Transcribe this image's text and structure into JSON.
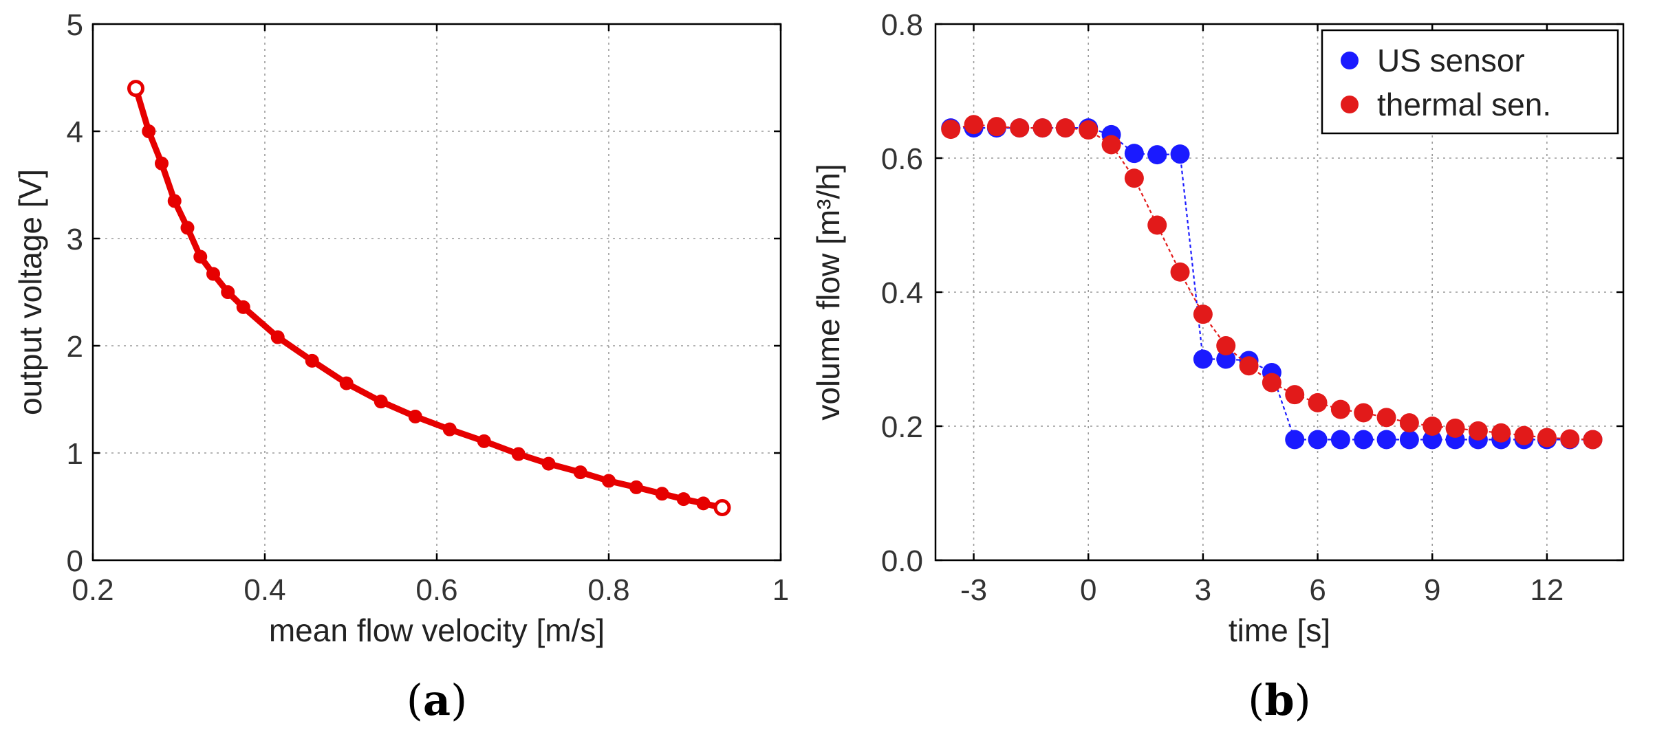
{
  "colors": {
    "red": "#e60000",
    "red_marker": "#e21a1a",
    "blue": "#1a1aff",
    "blue_line": "#3333ff"
  },
  "chart_data": [
    {
      "type": "line",
      "panel_label": "a",
      "xlabel": "mean flow velocity [m/s]",
      "ylabel": "output voltage [V]",
      "xlim": [
        0.2,
        1.0
      ],
      "ylim": [
        0,
        5
      ],
      "xticks": [
        0.2,
        0.4,
        0.6,
        0.8,
        1.0
      ],
      "xtick_labels": [
        "0.2",
        "0.4",
        "0.6",
        "0.8",
        "1"
      ],
      "yticks": [
        0,
        1,
        2,
        3,
        4,
        5
      ],
      "ytick_labels": [
        "0",
        "1",
        "2",
        "3",
        "4",
        "5"
      ],
      "grid": true,
      "series": [
        {
          "name": "output voltage",
          "color": "#e60000",
          "x": [
            0.25,
            0.265,
            0.28,
            0.295,
            0.31,
            0.325,
            0.34,
            0.357,
            0.375,
            0.415,
            0.455,
            0.495,
            0.535,
            0.575,
            0.615,
            0.655,
            0.695,
            0.73,
            0.767,
            0.8,
            0.832,
            0.862,
            0.887,
            0.91,
            0.932
          ],
          "y": [
            4.4,
            4.0,
            3.7,
            3.35,
            3.1,
            2.83,
            2.67,
            2.5,
            2.36,
            2.08,
            1.86,
            1.65,
            1.48,
            1.34,
            1.22,
            1.11,
            0.99,
            0.9,
            0.82,
            0.74,
            0.68,
            0.62,
            0.57,
            0.53,
            0.49
          ]
        }
      ]
    },
    {
      "type": "line",
      "panel_label": "b",
      "xlabel": "time [s]",
      "ylabel": "volume flow [m³/h]",
      "xlim": [
        -4,
        14
      ],
      "ylim": [
        0,
        0.8
      ],
      "xticks": [
        -3,
        0,
        3,
        6,
        9,
        12
      ],
      "xtick_labels": [
        "-3",
        "0",
        "3",
        "6",
        "9",
        "12"
      ],
      "yticks": [
        0,
        0.2,
        0.4,
        0.6,
        0.8
      ],
      "ytick_labels": [
        "0.0",
        "0.2",
        "0.4",
        "0.6",
        "0.8"
      ],
      "grid": true,
      "legend_position": "top-right",
      "series": [
        {
          "name": "US sensor",
          "color": "#1a1aff",
          "x": [
            -3.6,
            -3.0,
            -2.4,
            -1.8,
            -1.2,
            -0.6,
            0.0,
            0.6,
            1.2,
            1.8,
            2.4,
            3.0,
            3.6,
            4.2,
            4.8,
            5.4,
            6.0,
            6.6,
            7.2,
            7.8,
            8.4,
            9.0,
            9.6,
            10.2,
            10.8,
            11.4,
            12.0,
            12.6,
            13.2
          ],
          "y": [
            0.645,
            0.645,
            0.645,
            0.645,
            0.645,
            0.645,
            0.645,
            0.635,
            0.607,
            0.605,
            0.606,
            0.3,
            0.3,
            0.298,
            0.28,
            0.18,
            0.18,
            0.18,
            0.18,
            0.18,
            0.18,
            0.18,
            0.18,
            0.18,
            0.18,
            0.18,
            0.18,
            0.18,
            0.18
          ]
        },
        {
          "name": "thermal sen.",
          "color": "#e21a1a",
          "x": [
            -3.6,
            -3.0,
            -2.4,
            -1.8,
            -1.2,
            -0.6,
            0.0,
            0.6,
            1.2,
            1.8,
            2.4,
            3.0,
            3.6,
            4.2,
            4.8,
            5.4,
            6.0,
            6.6,
            7.2,
            7.8,
            8.4,
            9.0,
            9.6,
            10.2,
            10.8,
            11.4,
            12.0,
            12.6,
            13.2
          ],
          "y": [
            0.643,
            0.65,
            0.647,
            0.645,
            0.645,
            0.645,
            0.642,
            0.62,
            0.57,
            0.5,
            0.43,
            0.367,
            0.32,
            0.29,
            0.265,
            0.247,
            0.235,
            0.225,
            0.22,
            0.213,
            0.205,
            0.2,
            0.197,
            0.193,
            0.19,
            0.186,
            0.183,
            0.181,
            0.18
          ]
        }
      ]
    }
  ]
}
